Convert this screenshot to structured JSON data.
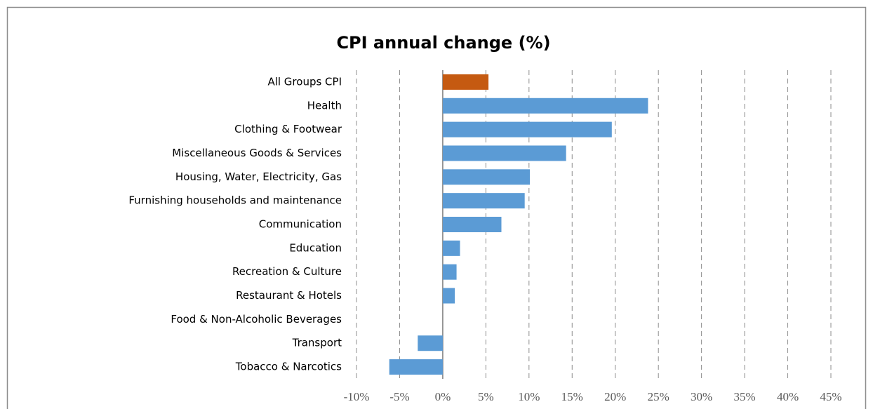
{
  "chart_data": {
    "type": "bar",
    "orientation": "horizontal",
    "title": "CPI annual change (%)",
    "categories": [
      "All Groups CPI",
      "Health",
      "Clothing & Footwear",
      "Miscellaneous Goods & Services",
      "Housing, Water, Electricity, Gas",
      "Furnishing households and maintenance",
      "Communication",
      "Education",
      "Recreation & Culture",
      "Restaurant & Hotels",
      "Food & Non-Alcoholic Beverages",
      "Transport",
      "Tobacco & Narcotics"
    ],
    "values": [
      5.3,
      23.8,
      19.6,
      14.3,
      10.1,
      9.5,
      6.8,
      2.0,
      1.6,
      1.4,
      0,
      -2.9,
      -6.2
    ],
    "colors": [
      "#c55a11",
      "#5b9bd5",
      "#5b9bd5",
      "#5b9bd5",
      "#5b9bd5",
      "#5b9bd5",
      "#5b9bd5",
      "#5b9bd5",
      "#5b9bd5",
      "#5b9bd5",
      "#5b9bd5",
      "#5b9bd5",
      "#5b9bd5"
    ],
    "xlim": [
      -10,
      45
    ],
    "xticks": [
      {
        "value": -10,
        "label": "-10%"
      },
      {
        "value": -5,
        "label": "-5%"
      },
      {
        "value": 0,
        "label": "0%"
      },
      {
        "value": 5,
        "label": "5%"
      },
      {
        "value": 10,
        "label": "10%"
      },
      {
        "value": 15,
        "label": "15%"
      },
      {
        "value": 20,
        "label": "20%"
      },
      {
        "value": 25,
        "label": "25%"
      },
      {
        "value": 30,
        "label": "30%"
      },
      {
        "value": 35,
        "label": "35%"
      },
      {
        "value": 40,
        "label": "40%"
      },
      {
        "value": 45,
        "label": "45%"
      }
    ],
    "grid": true
  }
}
